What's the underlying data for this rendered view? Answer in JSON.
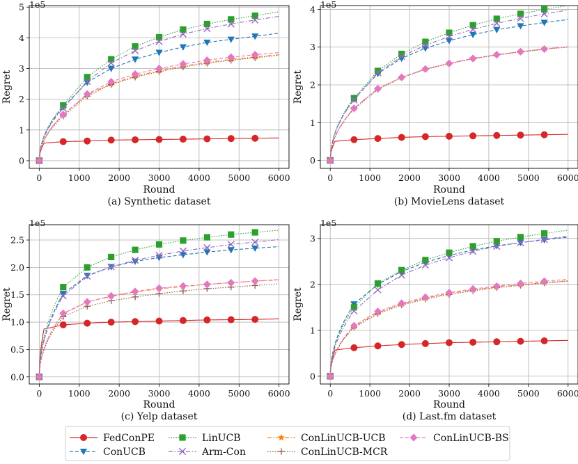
{
  "legend": {
    "entries": [
      {
        "label": "FedConPE",
        "color": "#d62728",
        "style": "solid",
        "marker": "circle"
      },
      {
        "label": "ConUCB",
        "color": "#1f77b4",
        "style": "dashed",
        "marker": "triangle-down"
      },
      {
        "label": "LinUCB",
        "color": "#2ca02c",
        "style": "dotted",
        "marker": "square"
      },
      {
        "label": "Arm-Con",
        "color": "#9467bd",
        "style": "dashdot",
        "marker": "x"
      },
      {
        "label": "ConLinUCB-UCB",
        "color": "#ff7f0e",
        "style": "dashdot",
        "marker": "star"
      },
      {
        "label": "ConLinUCB-MCR",
        "color": "#8c564b",
        "style": "dotted",
        "marker": "plus"
      },
      {
        "label": "ConLinUCB-BS",
        "color": "#e377c2",
        "style": "dashed",
        "marker": "diamond"
      }
    ]
  },
  "chart_data": [
    {
      "type": "line",
      "title": "(a) Synthetic dataset",
      "xlabel": "Round",
      "ylabel": "Regret",
      "scale_label": "1e5",
      "xlim": [
        -250,
        6250
      ],
      "ylim": [
        -0.25,
        5.05
      ],
      "xticks": [
        0,
        1000,
        2000,
        3000,
        4000,
        5000,
        6000
      ],
      "yticks": [
        0,
        1,
        2,
        3,
        4,
        5
      ],
      "ytick_labels": [
        "0",
        "1",
        "2",
        "3",
        "4",
        "5"
      ],
      "marker_x": [
        0,
        600,
        1200,
        1800,
        2400,
        3000,
        3600,
        4200,
        4800,
        5400
      ],
      "series": [
        {
          "name": "FedConPE",
          "values": [
            0,
            0.62,
            0.64,
            0.67,
            0.68,
            0.69,
            0.7,
            0.71,
            0.72,
            0.73
          ],
          "end": 0.74
        },
        {
          "name": "ConUCB",
          "values": [
            0,
            1.75,
            2.55,
            3.0,
            3.3,
            3.52,
            3.7,
            3.85,
            3.95,
            4.05
          ],
          "end": 4.15
        },
        {
          "name": "LinUCB",
          "values": [
            0,
            1.8,
            2.72,
            3.3,
            3.72,
            4.02,
            4.27,
            4.45,
            4.6,
            4.72
          ],
          "end": 4.85
        },
        {
          "name": "Arm-Con",
          "values": [
            0,
            1.7,
            2.58,
            3.18,
            3.58,
            3.88,
            4.12,
            4.3,
            4.45,
            4.58
          ],
          "end": 4.7
        },
        {
          "name": "ConLinUCB-UCB",
          "values": [
            0,
            1.5,
            2.15,
            2.5,
            2.75,
            2.93,
            3.08,
            3.2,
            3.3,
            3.38
          ],
          "end": 3.45
        },
        {
          "name": "ConLinUCB-MCR",
          "values": [
            0,
            1.45,
            2.1,
            2.48,
            2.72,
            2.9,
            3.05,
            3.17,
            3.27,
            3.35
          ],
          "end": 3.43
        },
        {
          "name": "ConLinUCB-BS",
          "values": [
            0,
            1.5,
            2.17,
            2.57,
            2.82,
            3.0,
            3.15,
            3.27,
            3.37,
            3.45
          ],
          "end": 3.52
        }
      ]
    },
    {
      "type": "line",
      "title": "(b) MovieLens dataset",
      "xlabel": "Round",
      "ylabel": "Regret",
      "scale_label": "1e5",
      "xlim": [
        -250,
        6250
      ],
      "ylim": [
        -0.21,
        4.1
      ],
      "xticks": [
        0,
        1000,
        2000,
        3000,
        4000,
        5000,
        6000
      ],
      "yticks": [
        0,
        1,
        2,
        3,
        4
      ],
      "ytick_labels": [
        "0",
        "1",
        "2",
        "3",
        "4"
      ],
      "marker_x": [
        0,
        600,
        1200,
        1800,
        2400,
        3000,
        3600,
        4200,
        4800,
        5400
      ],
      "series": [
        {
          "name": "FedConPE",
          "values": [
            0,
            0.55,
            0.58,
            0.61,
            0.63,
            0.64,
            0.65,
            0.66,
            0.67,
            0.68
          ],
          "end": 0.69
        },
        {
          "name": "ConUCB",
          "values": [
            0,
            1.62,
            2.3,
            2.7,
            2.97,
            3.17,
            3.33,
            3.46,
            3.56,
            3.65
          ],
          "end": 3.73
        },
        {
          "name": "LinUCB",
          "values": [
            0,
            1.65,
            2.37,
            2.82,
            3.14,
            3.38,
            3.58,
            3.75,
            3.88,
            4.0
          ],
          "end": 4.1
        },
        {
          "name": "Arm-Con",
          "values": [
            0,
            1.6,
            2.32,
            2.75,
            3.05,
            3.28,
            3.47,
            3.63,
            3.76,
            3.88
          ],
          "end": 3.98
        },
        {
          "name": "ConLinUCB-UCB",
          "values": [
            0,
            1.38,
            1.9,
            2.2,
            2.42,
            2.57,
            2.7,
            2.8,
            2.88,
            2.95
          ],
          "end": 3.01
        },
        {
          "name": "ConLinUCB-MCR",
          "values": [
            0,
            1.36,
            1.88,
            2.19,
            2.41,
            2.56,
            2.69,
            2.79,
            2.87,
            2.94
          ],
          "end": 3.0
        },
        {
          "name": "ConLinUCB-BS",
          "values": [
            0,
            1.38,
            1.9,
            2.2,
            2.42,
            2.57,
            2.7,
            2.8,
            2.88,
            2.95
          ],
          "end": 3.01
        }
      ]
    },
    {
      "type": "line",
      "title": "(c) Yelp dataset",
      "xlabel": "Round",
      "ylabel": "Regret",
      "scale_label": "1e5",
      "xlim": [
        -250,
        6250
      ],
      "ylim": [
        -0.13,
        2.78
      ],
      "xticks": [
        0,
        1000,
        2000,
        3000,
        4000,
        5000,
        6000
      ],
      "yticks": [
        0,
        0.5,
        1,
        1.5,
        2,
        2.5
      ],
      "ytick_labels": [
        "0.0",
        "0.5",
        "1.0",
        "1.5",
        "2.0",
        "2.5"
      ],
      "marker_x": [
        0,
        600,
        1200,
        1800,
        2400,
        3000,
        3600,
        4200,
        4800,
        5400
      ],
      "series": [
        {
          "name": "FedConPE",
          "values": [
            0,
            0.95,
            0.98,
            1.0,
            1.01,
            1.02,
            1.03,
            1.04,
            1.045,
            1.05
          ],
          "end": 1.06
        },
        {
          "name": "ConUCB",
          "values": [
            0,
            1.52,
            1.85,
            2.01,
            2.11,
            2.18,
            2.23,
            2.28,
            2.32,
            2.35
          ],
          "end": 2.38
        },
        {
          "name": "LinUCB",
          "values": [
            0,
            1.64,
            2.0,
            2.19,
            2.32,
            2.42,
            2.49,
            2.55,
            2.6,
            2.64
          ],
          "end": 2.68
        },
        {
          "name": "Arm-Con",
          "values": [
            0,
            1.48,
            1.84,
            2.01,
            2.13,
            2.22,
            2.3,
            2.36,
            2.42,
            2.46
          ],
          "end": 2.51
        },
        {
          "name": "ConLinUCB-UCB",
          "values": [
            0,
            1.15,
            1.37,
            1.47,
            1.55,
            1.61,
            1.65,
            1.69,
            1.72,
            1.75
          ],
          "end": 1.77
        },
        {
          "name": "ConLinUCB-MCR",
          "values": [
            0,
            1.1,
            1.29,
            1.39,
            1.46,
            1.52,
            1.57,
            1.61,
            1.64,
            1.67
          ],
          "end": 1.7
        },
        {
          "name": "ConLinUCB-BS",
          "values": [
            0,
            1.16,
            1.37,
            1.48,
            1.56,
            1.62,
            1.66,
            1.69,
            1.72,
            1.75
          ],
          "end": 1.78
        }
      ]
    },
    {
      "type": "line",
      "title": "(d) Last.fm dataset",
      "xlabel": "Round",
      "ylabel": "Regret",
      "scale_label": "1e5",
      "xlim": [
        -250,
        6250
      ],
      "ylim": [
        -0.17,
        3.3
      ],
      "xticks": [
        0,
        1000,
        2000,
        3000,
        4000,
        5000,
        6000
      ],
      "yticks": [
        0,
        1,
        2,
        3
      ],
      "ytick_labels": [
        "0",
        "1",
        "2",
        "3"
      ],
      "marker_x": [
        0,
        600,
        1200,
        1800,
        2400,
        3000,
        3600,
        4200,
        4800,
        5400
      ],
      "series": [
        {
          "name": "FedConPE",
          "values": [
            0,
            0.62,
            0.66,
            0.69,
            0.71,
            0.73,
            0.74,
            0.75,
            0.76,
            0.77
          ],
          "end": 0.78
        },
        {
          "name": "ConUCB",
          "values": [
            0,
            1.57,
            2.0,
            2.28,
            2.48,
            2.63,
            2.75,
            2.84,
            2.91,
            2.97
          ],
          "end": 3.03
        },
        {
          "name": "LinUCB",
          "values": [
            0,
            1.5,
            2.02,
            2.31,
            2.53,
            2.69,
            2.83,
            2.94,
            3.03,
            3.11
          ],
          "end": 3.18
        },
        {
          "name": "Arm-Con",
          "values": [
            0,
            1.42,
            1.88,
            2.2,
            2.42,
            2.58,
            2.72,
            2.83,
            2.91,
            2.98
          ],
          "end": 3.05
        },
        {
          "name": "ConLinUCB-UCB",
          "values": [
            0,
            1.08,
            1.38,
            1.57,
            1.7,
            1.8,
            1.88,
            1.94,
            1.99,
            2.04
          ],
          "end": 2.08
        },
        {
          "name": "ConLinUCB-MCR",
          "values": [
            0,
            1.06,
            1.36,
            1.55,
            1.68,
            1.78,
            1.86,
            1.93,
            1.98,
            2.03
          ],
          "end": 2.07
        },
        {
          "name": "ConLinUCB-BS",
          "values": [
            0,
            1.1,
            1.41,
            1.59,
            1.72,
            1.82,
            1.9,
            1.96,
            2.02,
            2.07
          ],
          "end": 2.11
        }
      ]
    }
  ]
}
